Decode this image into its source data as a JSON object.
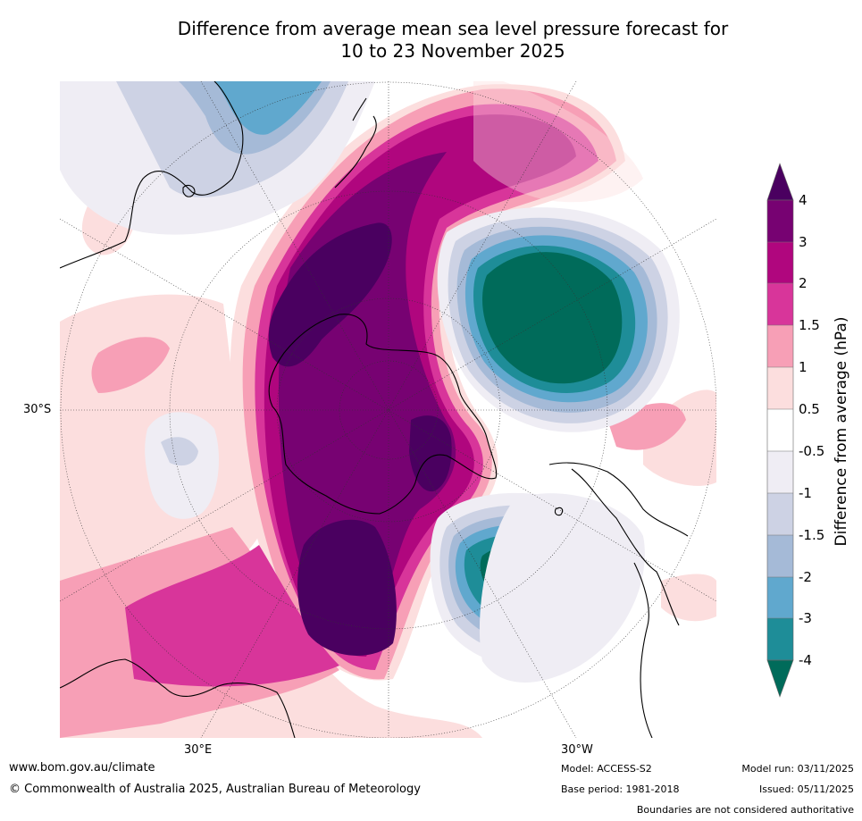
{
  "title": {
    "line1": "Difference from average mean sea level pressure forecast for",
    "line2": "10 to 23 November 2025"
  },
  "map": {
    "projection": "south polar stereographic",
    "lat_labels": [
      "30°S"
    ],
    "lon_labels": [
      "30°E",
      "30°W"
    ],
    "landmasses": [
      "Antarctica",
      "Australia",
      "New Zealand",
      "South America",
      "Africa"
    ]
  },
  "colorbar": {
    "title": "Difference from average (hPa)",
    "ticks": [
      "4",
      "3",
      "2",
      "1.5",
      "1",
      "0.5",
      "-0.5",
      "-1",
      "-1.5",
      "-2",
      "-3",
      "-4"
    ],
    "colors": [
      "#4a0060",
      "#770272",
      "#b0067e",
      "#d8359a",
      "#f79fb6",
      "#fcdede",
      "#ffffff",
      "#efedf4",
      "#cdd2e4",
      "#a5bad7",
      "#60a8ce",
      "#1e8d98",
      "#006b5a"
    ]
  },
  "footer": {
    "url": "www.bom.gov.au/climate",
    "copyright": "© Commonwealth of Australia 2025, Australian Bureau of Meteorology",
    "model": "Model: ACCESS-S2",
    "base_period": "Base period: 1981-2018",
    "model_run": "Model run: 03/11/2025",
    "issued": "Issued: 05/11/2025",
    "disclaimer": "Boundaries are not considered authoritative"
  }
}
